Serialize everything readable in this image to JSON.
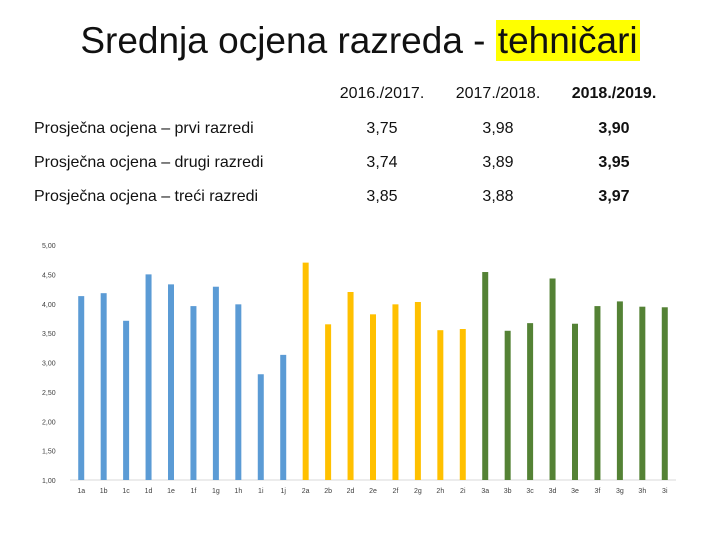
{
  "title": {
    "prefix": "Srednja ocjena razreda - ",
    "highlight": "tehničari",
    "highlight_color": "#ffff00"
  },
  "table": {
    "headers": [
      "",
      "2016./2017.",
      "2017./2018.",
      "2018./2019."
    ],
    "rows": [
      {
        "label": "Prosječna ocjena – prvi razredi",
        "values": [
          "3,75",
          "3,98",
          "3,90"
        ]
      },
      {
        "label": "Prosječna ocjena – drugi razredi",
        "values": [
          "3,74",
          "3,89",
          "3,95"
        ]
      },
      {
        "label": "Prosječna ocjena – treći razredi",
        "values": [
          "3,85",
          "3,88",
          "3,97"
        ]
      }
    ]
  },
  "chart_data": {
    "type": "bar",
    "categories": [
      "1a",
      "1b",
      "1c",
      "1d",
      "1e",
      "1f",
      "1g",
      "1h",
      "1i",
      "1j",
      "2a",
      "2b",
      "2d",
      "2e",
      "2f",
      "2g",
      "2h",
      "2i",
      "3a",
      "3b",
      "3c",
      "3d",
      "3e",
      "3f",
      "3g",
      "3h",
      "3i"
    ],
    "values": [
      4.13,
      4.18,
      3.71,
      4.5,
      4.33,
      3.96,
      4.29,
      3.99,
      2.8,
      3.13,
      4.7,
      3.65,
      4.2,
      3.82,
      3.99,
      4.03,
      3.55,
      3.57,
      4.54,
      3.54,
      3.67,
      4.43,
      3.66,
      3.96,
      4.04,
      3.95,
      3.94
    ],
    "colors_by_group": {
      "1": "#5b9bd5",
      "2": "#ffc000",
      "3": "#548235"
    },
    "ylim": [
      1.0,
      5.0
    ],
    "yticks": [
      "1,00",
      "1,50",
      "2,00",
      "2,50",
      "3,00",
      "3,50",
      "4,00",
      "4,50",
      "5,00"
    ],
    "grid": false,
    "legend": "none"
  }
}
